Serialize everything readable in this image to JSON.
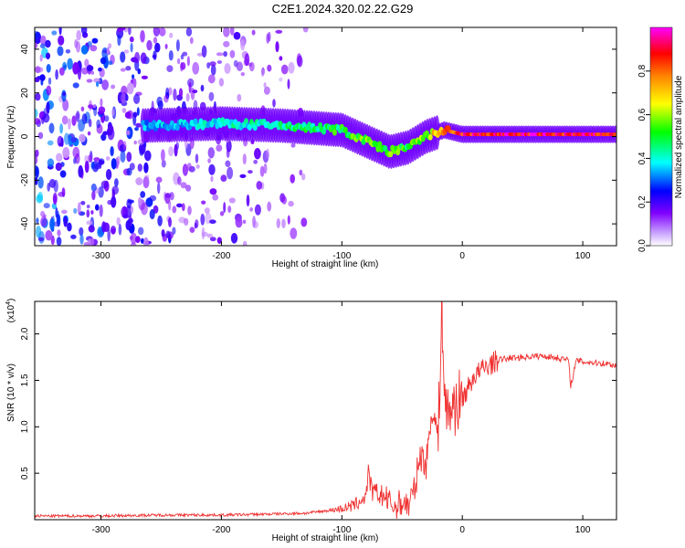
{
  "title": "C2E1.2024.320.02.22.G29",
  "colors": {
    "snr_line": "#f03232",
    "spectrum_scatter": "#7f3ff0",
    "axis": "#000000"
  },
  "chart_data": [
    {
      "type": "heatmap",
      "name": "spectrogram",
      "xlabel": "Height of straight line (km)",
      "ylabel": "Frequency (Hz)",
      "xlim": [
        -355,
        128
      ],
      "ylim": [
        -50,
        50
      ],
      "xticks": [
        -300,
        -200,
        -100,
        0,
        100
      ],
      "yticks": [
        -40,
        -20,
        0,
        20,
        40
      ],
      "colorbar": {
        "label": "Normalized spectral amplitude",
        "range": [
          0,
          1
        ],
        "ticks": [
          "0.0",
          "0.2",
          "0.4",
          "0.6",
          "0.8"
        ],
        "tick_values": [
          0.0,
          0.2,
          0.4,
          0.6,
          0.8
        ],
        "colormap": [
          "#ffffff",
          "#8000ff",
          "#0000ff",
          "#00ffff",
          "#00ff00",
          "#ffff00",
          "#ff8000",
          "#ff0000",
          "#ff00ff"
        ]
      },
      "ridge": {
        "description_points_height_km": [
          -265,
          -200,
          -150,
          -100,
          -80,
          -60,
          -45,
          -30,
          -15,
          0,
          50,
          128
        ],
        "frequency_hz": [
          5,
          6,
          5,
          3,
          -2,
          -7,
          -5,
          0,
          3,
          1,
          1,
          1
        ],
        "amplitude": [
          0.35,
          0.4,
          0.45,
          0.5,
          0.55,
          0.55,
          0.5,
          0.6,
          0.75,
          0.9,
          0.95,
          0.9
        ]
      },
      "noise_region_km": [
        -355,
        -130
      ]
    },
    {
      "type": "line",
      "name": "snr",
      "xlabel": "Height of straight line (km)",
      "ylabel": "SNR (10 * v/v)",
      "yscale_label": "(x10",
      "yscale_exp": "4",
      "yscale_close": ")",
      "xlim": [
        -355,
        128
      ],
      "ylim": [
        0,
        2.35
      ],
      "xticks": [
        -300,
        -200,
        -100,
        0,
        100
      ],
      "yticks": [
        "0.5",
        "1.0",
        "1.5",
        "2.0"
      ],
      "ytick_values": [
        0.5,
        1.0,
        1.5,
        2.0
      ],
      "x": [
        -355,
        -300,
        -250,
        -200,
        -160,
        -130,
        -110,
        -100,
        -90,
        -80,
        -78,
        -75,
        -65,
        -55,
        -50,
        -45,
        -40,
        -35,
        -30,
        -25,
        -20,
        -17,
        -15,
        -12,
        -10,
        -5,
        0,
        10,
        20,
        30,
        40,
        50,
        60,
        70,
        80,
        88,
        90,
        95,
        100,
        110,
        120,
        128
      ],
      "y": [
        0.04,
        0.04,
        0.05,
        0.05,
        0.06,
        0.07,
        0.1,
        0.12,
        0.15,
        0.25,
        0.5,
        0.3,
        0.25,
        0.12,
        0.2,
        0.15,
        0.3,
        0.7,
        0.6,
        1.2,
        0.9,
        2.35,
        1.4,
        1.1,
        1.2,
        1.25,
        1.3,
        1.55,
        1.65,
        1.72,
        1.74,
        1.75,
        1.76,
        1.76,
        1.74,
        1.72,
        1.45,
        1.72,
        1.7,
        1.69,
        1.68,
        1.66
      ]
    }
  ]
}
